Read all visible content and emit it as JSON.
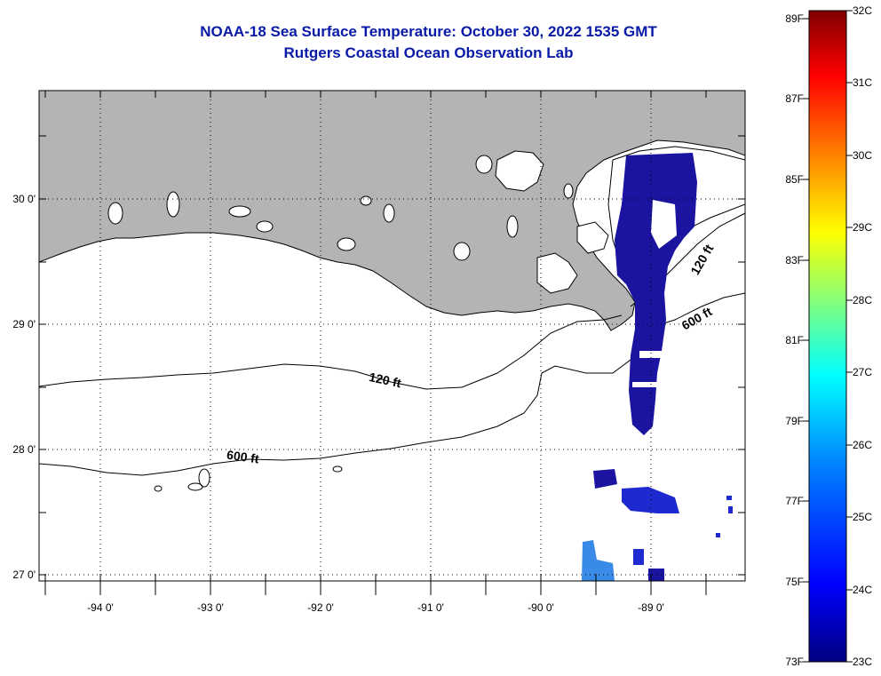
{
  "title": "NOAA-18 Sea Surface Temperature:  October 30, 2022 1535 GMT",
  "subtitle": "Rutgers Coastal Ocean Observation Lab",
  "map": {
    "lon_ticks": [
      "-94 0'",
      "-93 0'",
      "-92 0'",
      "-91 0'",
      "-90 0'",
      "-89 0'"
    ],
    "lat_ticks": [
      "30 0'",
      "29 0'",
      "28 0'",
      "27 0'"
    ],
    "contour_labels": [
      "120 ft",
      "600 ft",
      "120 ft",
      "600 ft"
    ],
    "colors": {
      "land": "#b4b4b4",
      "water": "#ffffff",
      "sst_dark": "#1a14a0",
      "sst_mid": "#1e3ad8",
      "sst_light": "#3a90e8"
    }
  },
  "colorbar": {
    "fahrenheit_labels": [
      "89F",
      "87F",
      "85F",
      "83F",
      "81F",
      "79F",
      "77F",
      "75F",
      "73F"
    ],
    "celsius_labels": [
      "32C",
      "31C",
      "30C",
      "29C",
      "28C",
      "27C",
      "26C",
      "25C",
      "24C",
      "23C"
    ],
    "stops": [
      "#000080",
      "#0000ff",
      "#0080ff",
      "#00ffff",
      "#80ff80",
      "#ffff00",
      "#ff8000",
      "#ff0000",
      "#800000"
    ]
  }
}
